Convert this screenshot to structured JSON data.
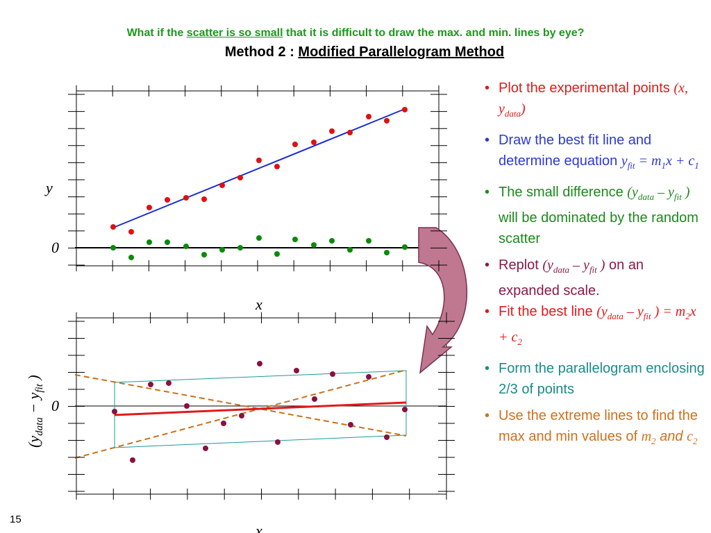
{
  "header": {
    "subtitle": [
      "What if the ",
      "scatter is so small",
      " that it is difficult to draw the max. and min. lines by eye?"
    ],
    "title": [
      "Method 2 : ",
      "Modified Parallelogram Method"
    ]
  },
  "plot1": {
    "y_label": "y",
    "zero_label": "0",
    "x_label": "x"
  },
  "plot2": {
    "y_label": [
      "(y",
      "data",
      " − y",
      "fit",
      " )"
    ],
    "zero_label": "0",
    "x_label": "x"
  },
  "bullets": [
    [
      "Plot the experimental points ",
      "(x, y",
      "data",
      ")"
    ],
    [
      "Draw the best fit line and determine equation ",
      "y",
      "fit",
      " = m",
      "1",
      "x + c",
      "1"
    ],
    [
      "The small difference ",
      "(y",
      "data",
      " – y",
      "fit",
      " )",
      " will be dominated by the random scatter"
    ],
    [
      "Replot  ",
      "(y",
      "data",
      " – y",
      "fit",
      " )",
      " on an expanded scale."
    ],
    [
      "Fit the best line ",
      "(y",
      "data",
      " – y",
      "fit",
      " ) = m",
      "2",
      "x + c",
      "2"
    ],
    [
      "Form the parallelogram enclosing 2/3 of points"
    ],
    [
      "Use the extreme lines to find the max and min values of  ",
      "m",
      "2",
      " and ",
      "c",
      "2"
    ]
  ],
  "slide_number": "15"
}
